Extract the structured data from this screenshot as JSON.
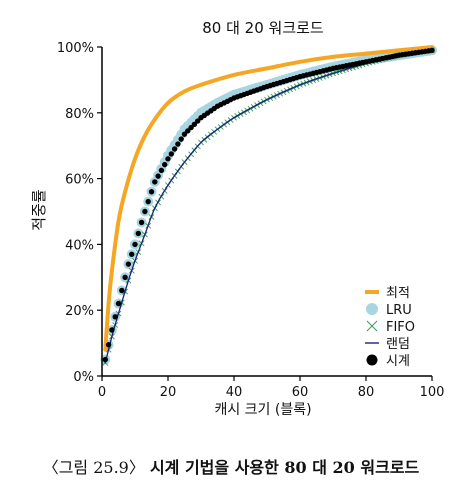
{
  "chart_data": {
    "type": "line",
    "title": "80 대 20 워크로드",
    "xlabel": "캐시 크기 (블록)",
    "ylabel": "적중률",
    "xlim": [
      0,
      100
    ],
    "ylim": [
      0,
      100
    ],
    "x_ticks": [
      "0",
      "20",
      "40",
      "60",
      "80",
      "100"
    ],
    "y_ticks": [
      "0%",
      "20%",
      "40%",
      "60%",
      "80%",
      "100%"
    ],
    "legend_position": "bottom-right",
    "grid": false,
    "series": [
      {
        "name": "최적",
        "color": "#f5a623",
        "style": "thick-line",
        "x": [
          1,
          2,
          3,
          5,
          7,
          10,
          13,
          16,
          20,
          25,
          30,
          40,
          50,
          60,
          70,
          80,
          90,
          100
        ],
        "y": [
          8,
          22,
          32,
          47,
          56,
          66,
          73,
          78,
          83,
          86.5,
          88.5,
          91.5,
          93.5,
          95.5,
          97,
          98,
          99,
          100
        ]
      },
      {
        "name": "LRU",
        "color": "#a8d5e2",
        "style": "large-circle",
        "x": [
          1,
          3,
          5,
          8,
          10,
          13,
          16,
          20,
          25,
          30,
          35,
          40,
          50,
          60,
          70,
          80,
          90,
          100
        ],
        "y": [
          5,
          14,
          22,
          34,
          40,
          50,
          59,
          67,
          75,
          80,
          83,
          85.5,
          88.5,
          91.5,
          94,
          96,
          97.5,
          99
        ]
      },
      {
        "name": "FIFO",
        "color": "#3a9a5a",
        "style": "x-marker",
        "x": [
          1,
          3,
          5,
          8,
          10,
          13,
          16,
          20,
          25,
          30,
          35,
          40,
          50,
          60,
          70,
          80,
          90,
          100
        ],
        "y": [
          4,
          12,
          19,
          29,
          35,
          43,
          51,
          58,
          65,
          71,
          75,
          78.5,
          84,
          88.5,
          92,
          95,
          97.5,
          99
        ]
      },
      {
        "name": "랜덤",
        "color": "#1a237e",
        "style": "thin-line",
        "x": [
          1,
          3,
          5,
          8,
          10,
          13,
          16,
          20,
          25,
          30,
          35,
          40,
          50,
          60,
          70,
          80,
          90,
          100
        ],
        "y": [
          4,
          12,
          19,
          29,
          35,
          43,
          51,
          58,
          65,
          71,
          75,
          78.5,
          84,
          88.5,
          92,
          95,
          97.5,
          99
        ]
      },
      {
        "name": "시계",
        "color": "#000000",
        "style": "dot",
        "x": [
          1,
          3,
          5,
          8,
          10,
          13,
          16,
          20,
          25,
          30,
          35,
          40,
          50,
          60,
          70,
          80,
          90,
          100
        ],
        "y": [
          5,
          14,
          22,
          34,
          40,
          50,
          59,
          66,
          73.5,
          78.5,
          82,
          84.5,
          88,
          91,
          93.5,
          95.5,
          97.5,
          99
        ]
      }
    ]
  },
  "caption": {
    "label": "〈그림 25.9〉",
    "text": "시계 기법을 사용한 80 대 20 워크로드"
  }
}
